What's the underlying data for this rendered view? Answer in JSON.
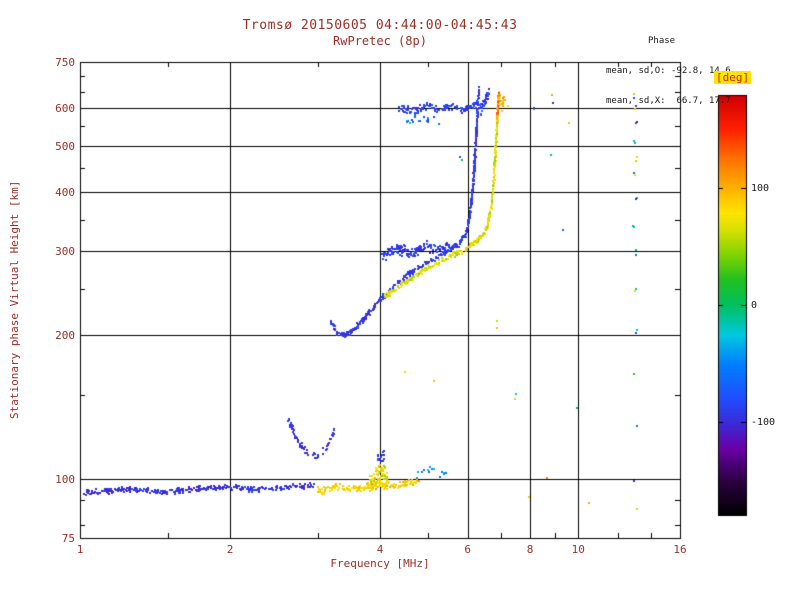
{
  "colors": {
    "axis_text": "#9c2f26",
    "stats_text": "#1a1a1a",
    "grid": "#000000",
    "background": "#ffffff",
    "colorbar_label_bg": "#ffe400",
    "colorbar_label_fg": "#cc2200"
  },
  "stats": {
    "heading": "Phase",
    "o_line": "mean, sd,O: -92.8, 14.6",
    "x_line": "mean, sd,X:  66.7, 17.7",
    "o": {
      "mean": -92.8,
      "sd": 14.6
    },
    "x": {
      "mean": 66.7,
      "sd": 17.7
    }
  },
  "chart_data": {
    "type": "scatter",
    "title": "Tromsø 20150605 04:44:00-04:45:43",
    "subtitle": "RwPretec (8p)",
    "xlabel": "Frequency [MHz]",
    "ylabel": "Stationary phase Virtual Height [km]",
    "x_scale": "log",
    "xlim": [
      1,
      16
    ],
    "x_ticks": [
      1,
      2,
      4,
      6,
      8,
      10,
      16
    ],
    "x_minor": [
      1.5,
      3,
      5,
      7,
      9,
      12,
      14
    ],
    "y_scale": "log",
    "ylim": [
      75,
      750
    ],
    "y_ticks": [
      75,
      100,
      200,
      300,
      400,
      500,
      600,
      750
    ],
    "y_minor": [
      80,
      90,
      150,
      250,
      350,
      450,
      550,
      650,
      700
    ],
    "grid": true,
    "seed": 20150605,
    "colorbar": {
      "title": "[deg]",
      "ticks": [
        100,
        0,
        -100
      ],
      "range": [
        -180,
        180
      ],
      "stops": [
        [
          0.0,
          "#000000"
        ],
        [
          0.08,
          "#2b0040"
        ],
        [
          0.16,
          "#6a00a8"
        ],
        [
          0.22,
          "#3b2bd9"
        ],
        [
          0.28,
          "#1f4fff"
        ],
        [
          0.36,
          "#0080ff"
        ],
        [
          0.43,
          "#00c8e0"
        ],
        [
          0.5,
          "#00c060"
        ],
        [
          0.56,
          "#20c020"
        ],
        [
          0.62,
          "#7fd400"
        ],
        [
          0.68,
          "#d8e000"
        ],
        [
          0.72,
          "#ffe400"
        ],
        [
          0.78,
          "#ffb000"
        ],
        [
          0.85,
          "#ff7000"
        ],
        [
          0.92,
          "#ff2000"
        ],
        [
          1.0,
          "#d00000"
        ]
      ]
    },
    "segments": [
      {
        "name": "e-region-o-band",
        "n": 300,
        "ju": 0.004,
        "jv": 0.007,
        "deg": -97,
        "sd": 10,
        "anchors": [
          [
            1.02,
            93
          ],
          [
            1.25,
            95
          ],
          [
            1.5,
            93.5
          ],
          [
            1.75,
            95.5
          ],
          [
            2.0,
            96
          ],
          [
            2.3,
            94.5
          ],
          [
            2.6,
            96
          ],
          [
            2.95,
            96.5
          ]
        ]
      },
      {
        "name": "e-region-x-band",
        "n": 150,
        "ju": 0.005,
        "jv": 0.009,
        "deg": 86,
        "sd": 16,
        "anchors": [
          [
            3.0,
            94
          ],
          [
            3.3,
            96
          ],
          [
            3.6,
            95
          ],
          [
            3.9,
            97
          ],
          [
            4.2,
            96
          ],
          [
            4.6,
            98
          ],
          [
            4.8,
            99
          ]
        ]
      },
      {
        "name": "e-blob-4mhz",
        "n": 85,
        "ju": 0.01,
        "jv": 0.028,
        "deg": 74,
        "sd": 28,
        "anchors": [
          [
            3.8,
            97
          ],
          [
            3.95,
            101
          ],
          [
            4.05,
            104
          ],
          [
            4.15,
            99
          ]
        ]
      },
      {
        "name": "e-cyan-tail",
        "n": 14,
        "ju": 0.012,
        "jv": 0.012,
        "deg": -45,
        "sd": 30,
        "anchors": [
          [
            4.7,
            101
          ],
          [
            5.1,
            105
          ],
          [
            5.45,
            102
          ]
        ]
      },
      {
        "name": "e-blue-under-blob",
        "n": 14,
        "ju": 0.008,
        "jv": 0.012,
        "deg": -92,
        "sd": 12,
        "anchors": [
          [
            3.95,
            109
          ],
          [
            4.1,
            113
          ]
        ]
      },
      {
        "name": "cusp-arc",
        "n": 70,
        "ju": 0.004,
        "jv": 0.008,
        "deg": -95,
        "sd": 10,
        "anchors": [
          [
            2.62,
            133
          ],
          [
            2.72,
            121
          ],
          [
            2.86,
            113
          ],
          [
            3.0,
            111
          ],
          [
            3.13,
            116
          ],
          [
            3.24,
            126
          ]
        ]
      },
      {
        "name": "f-trace-o",
        "n": 480,
        "ju": 0.005,
        "jv": 0.007,
        "deg": -93,
        "sd": 11,
        "anchors": [
          [
            3.18,
            214
          ],
          [
            3.3,
            201
          ],
          [
            3.42,
            200
          ],
          [
            3.56,
            207
          ],
          [
            3.76,
            219
          ],
          [
            4.0,
            237
          ],
          [
            4.3,
            255
          ],
          [
            4.6,
            270
          ],
          [
            4.9,
            282
          ],
          [
            5.2,
            292
          ],
          [
            5.5,
            301
          ],
          [
            5.75,
            311
          ],
          [
            5.95,
            326
          ],
          [
            6.05,
            352
          ],
          [
            6.12,
            388
          ],
          [
            6.17,
            432
          ],
          [
            6.21,
            482
          ],
          [
            6.25,
            537
          ],
          [
            6.28,
            588
          ],
          [
            6.31,
            628
          ],
          [
            6.33,
            660
          ]
        ]
      },
      {
        "name": "f-plateau-spread",
        "n": 140,
        "ju": 0.009,
        "jv": 0.013,
        "deg": -92,
        "sd": 14,
        "anchors": [
          [
            4.05,
            293
          ],
          [
            4.35,
            304
          ],
          [
            4.65,
            297
          ],
          [
            4.95,
            308
          ],
          [
            5.25,
            302
          ],
          [
            5.5,
            310
          ]
        ]
      },
      {
        "name": "x-trace",
        "n": 380,
        "ju": 0.005,
        "jv": 0.007,
        "deg": 68,
        "sd": 20,
        "anchors": [
          [
            4.1,
            241
          ],
          [
            4.4,
            254
          ],
          [
            4.7,
            266
          ],
          [
            5.0,
            277
          ],
          [
            5.3,
            287
          ],
          [
            5.6,
            295
          ],
          [
            5.9,
            303
          ],
          [
            6.2,
            313
          ],
          [
            6.45,
            325
          ],
          [
            6.6,
            346
          ],
          [
            6.7,
            376
          ],
          [
            6.76,
            416
          ],
          [
            6.81,
            466
          ],
          [
            6.85,
            521
          ],
          [
            6.89,
            576
          ],
          [
            6.92,
            621
          ],
          [
            6.95,
            650
          ]
        ]
      },
      {
        "name": "x-trace-orange-top",
        "n": 40,
        "ju": 0.007,
        "jv": 0.01,
        "deg": 116,
        "sd": 24,
        "anchors": [
          [
            6.86,
            560
          ],
          [
            6.9,
            612
          ],
          [
            6.94,
            648
          ]
        ]
      },
      {
        "name": "spread-f-top",
        "n": 130,
        "ju": 0.01,
        "jv": 0.009,
        "deg": -90,
        "sd": 13,
        "anchors": [
          [
            4.35,
            600
          ],
          [
            4.65,
            593
          ],
          [
            4.95,
            606
          ],
          [
            5.25,
            597
          ],
          [
            5.55,
            604
          ],
          [
            5.85,
            595
          ],
          [
            6.1,
            606
          ],
          [
            6.3,
            616
          ]
        ]
      },
      {
        "name": "spread-f-lower",
        "n": 18,
        "ju": 0.012,
        "jv": 0.012,
        "deg": -65,
        "sd": 30,
        "anchors": [
          [
            4.5,
            557
          ],
          [
            4.85,
            571
          ],
          [
            5.3,
            561
          ]
        ]
      },
      {
        "name": "top-right-blue",
        "n": 45,
        "ju": 0.01,
        "jv": 0.014,
        "deg": -85,
        "sd": 28,
        "anchors": [
          [
            6.35,
            592
          ],
          [
            6.5,
            622
          ],
          [
            6.62,
            648
          ]
        ]
      },
      {
        "name": "top-right-orange",
        "n": 20,
        "ju": 0.012,
        "jv": 0.016,
        "deg": 95,
        "sd": 35,
        "anchors": [
          [
            6.98,
            597
          ],
          [
            7.1,
            632
          ]
        ]
      },
      {
        "name": "interference-13mhz",
        "scatter": true,
        "n": 26,
        "ju": 0.012,
        "jv": 0.012,
        "deg": 0,
        "sd": 110,
        "anchors": [
          [
            12.9,
            640
          ],
          [
            13.0,
            600
          ],
          [
            13.1,
            558
          ],
          [
            12.95,
            512
          ],
          [
            13.05,
            470
          ],
          [
            13.0,
            430
          ],
          [
            13.1,
            386
          ],
          [
            12.95,
            340
          ],
          [
            13.05,
            296
          ],
          [
            13.0,
            250
          ],
          [
            13.1,
            206
          ],
          [
            12.95,
            165
          ],
          [
            13.05,
            130
          ],
          [
            13.0,
            100
          ],
          [
            13.05,
            86
          ]
        ]
      },
      {
        "name": "sparse-echoes",
        "scatter": true,
        "n": 20,
        "ju": 0.02,
        "jv": 0.02,
        "deg": 0,
        "sd": 120,
        "anchors": [
          [
            5.8,
            470
          ],
          [
            6.9,
            212
          ],
          [
            7.5,
            150
          ],
          [
            8.2,
            605
          ],
          [
            8.9,
            620
          ],
          [
            8.8,
            480
          ],
          [
            9.3,
            330
          ],
          [
            9.9,
            140
          ],
          [
            10.4,
            90
          ],
          [
            7.9,
            95
          ],
          [
            8.6,
            100
          ],
          [
            5.1,
            160
          ],
          [
            4.45,
            172
          ],
          [
            7.3,
            620
          ],
          [
            9.6,
            560
          ]
        ]
      }
    ]
  }
}
